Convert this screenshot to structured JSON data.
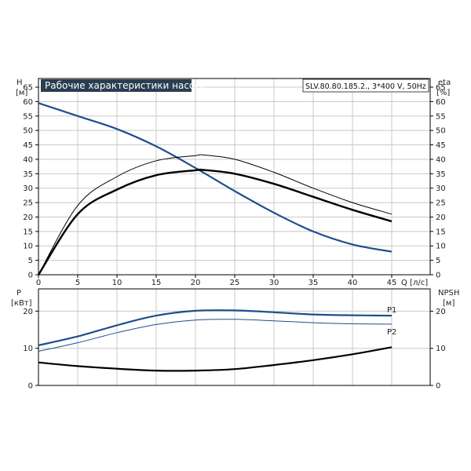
{
  "chart_data": [
    {
      "type": "line",
      "title": "Рабочие характеристики насоса",
      "model": "SLV.80.80.185.2., 3*400 V, 50Hz",
      "x_label": "Q [л/с]",
      "y_label_left": [
        "H",
        "[м]"
      ],
      "y_label_right": [
        "eta",
        "[%]"
      ],
      "x_ticks": [
        "0",
        "5",
        "10",
        "15",
        "20",
        "25",
        "30",
        "35",
        "40",
        "45"
      ],
      "y_ticks": [
        "0",
        "5",
        "10",
        "15",
        "20",
        "25",
        "30",
        "35",
        "40",
        "45",
        "50",
        "55",
        "60",
        "65"
      ],
      "xlim": [
        0,
        45
      ],
      "ylim": [
        0,
        68
      ],
      "grid": true,
      "colors": {
        "head": "#1f4e8c",
        "eta": "#000000",
        "grid": "#c8c8c8",
        "title_bg": "#2b3d50"
      },
      "series": [
        {
          "role": "head",
          "x": [
            0,
            5,
            10,
            15,
            20,
            25,
            30,
            35,
            40,
            45
          ],
          "y": [
            59.5,
            55,
            50.5,
            44.5,
            37,
            29,
            21.5,
            15,
            10.5,
            8
          ]
        },
        {
          "role": "eta_thin",
          "x": [
            0,
            5,
            10,
            15,
            20,
            21,
            25,
            30,
            35,
            40,
            45
          ],
          "y": [
            0,
            24,
            34,
            39.5,
            41.3,
            41.5,
            40,
            35.5,
            30,
            25,
            21
          ]
        },
        {
          "role": "eta_bold",
          "x": [
            0,
            5,
            10,
            15,
            20,
            21,
            25,
            30,
            35,
            40,
            45
          ],
          "y": [
            0,
            21,
            29.5,
            34.5,
            36.2,
            36.3,
            35,
            31.5,
            27,
            22.5,
            18.5
          ]
        }
      ]
    },
    {
      "type": "line",
      "y_label_left": [
        "P",
        "[кВт]"
      ],
      "y_label_right": [
        "NPSH",
        "[м]"
      ],
      "y_ticks": [
        "0",
        "10",
        "20"
      ],
      "xlim": [
        0,
        45
      ],
      "ylim": [
        0,
        26
      ],
      "grid": true,
      "series": [
        {
          "name": "P1",
          "x": [
            0,
            5,
            10,
            15,
            20,
            25,
            30,
            35,
            40,
            45
          ],
          "y": [
            10.8,
            13.2,
            16.2,
            18.8,
            20.1,
            20.2,
            19.7,
            19.1,
            18.9,
            18.8
          ]
        },
        {
          "name": "P2",
          "x": [
            0,
            5,
            10,
            15,
            20,
            25,
            30,
            35,
            40,
            45
          ],
          "y": [
            9.2,
            11.5,
            14.2,
            16.4,
            17.6,
            17.8,
            17.4,
            16.9,
            16.6,
            16.5
          ]
        },
        {
          "role": "npsh",
          "x": [
            0,
            5,
            10,
            15,
            20,
            25,
            30,
            35,
            40,
            45
          ],
          "y": [
            6.2,
            5.2,
            4.5,
            4.0,
            4.0,
            4.4,
            5.5,
            6.8,
            8.4,
            10.3
          ]
        }
      ]
    }
  ]
}
